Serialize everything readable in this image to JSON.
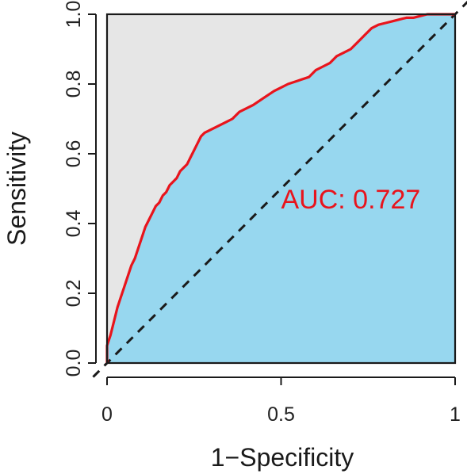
{
  "chart_data": {
    "type": "line",
    "subtype": "roc-curve",
    "title": "",
    "xlabel": "1−Specificity",
    "ylabel": "Sensitivity",
    "xlim": [
      0,
      1
    ],
    "ylim": [
      0,
      1
    ],
    "x_ticks": [
      0,
      0.5,
      1
    ],
    "x_tick_labels": [
      "0",
      "0.5",
      "1"
    ],
    "y_ticks": [
      0,
      0.2,
      0.4,
      0.6,
      0.8,
      1
    ],
    "y_tick_labels": [
      "0.0",
      "0.2",
      "0.4",
      "0.6",
      "0.8",
      "1.0"
    ],
    "grid": false,
    "legend": "none",
    "annotation": {
      "text": "AUC: 0.727",
      "x": 0.5,
      "y": 0.47
    },
    "series": [
      {
        "x": [
          0,
          0,
          0.01,
          0.02,
          0.03,
          0.04,
          0.05,
          0.06,
          0.07,
          0.08,
          0.09,
          0.1,
          0.11,
          0.12,
          0.13,
          0.14,
          0.15,
          0.16,
          0.17,
          0.18,
          0.19,
          0.2,
          0.21,
          0.22,
          0.23,
          0.24,
          0.25,
          0.26,
          0.27,
          0.28,
          0.3,
          0.32,
          0.34,
          0.36,
          0.38,
          0.4,
          0.42,
          0.45,
          0.48,
          0.5,
          0.52,
          0.55,
          0.58,
          0.6,
          0.62,
          0.64,
          0.66,
          0.68,
          0.7,
          0.72,
          0.74,
          0.76,
          0.78,
          0.8,
          0.82,
          0.84,
          0.86,
          0.88,
          0.9,
          0.92,
          1.0
        ],
        "y": [
          0,
          0.05,
          0.08,
          0.12,
          0.16,
          0.19,
          0.22,
          0.25,
          0.28,
          0.3,
          0.33,
          0.36,
          0.39,
          0.41,
          0.43,
          0.45,
          0.46,
          0.48,
          0.49,
          0.51,
          0.52,
          0.53,
          0.55,
          0.56,
          0.57,
          0.59,
          0.61,
          0.63,
          0.65,
          0.66,
          0.67,
          0.68,
          0.69,
          0.7,
          0.72,
          0.73,
          0.74,
          0.76,
          0.78,
          0.79,
          0.8,
          0.81,
          0.82,
          0.84,
          0.85,
          0.86,
          0.88,
          0.89,
          0.9,
          0.92,
          0.94,
          0.96,
          0.97,
          0.975,
          0.98,
          0.985,
          0.99,
          0.99,
          0.995,
          1.0,
          1.0
        ]
      }
    ],
    "reference_line": {
      "from": [
        0,
        0
      ],
      "to": [
        1,
        1
      ]
    },
    "colors": {
      "curve": "#e8141c",
      "area_under": "#97d7ef",
      "area_over": "#e6e6e6",
      "reference": "#1a1a1a",
      "annotation": "#e8141c"
    }
  }
}
